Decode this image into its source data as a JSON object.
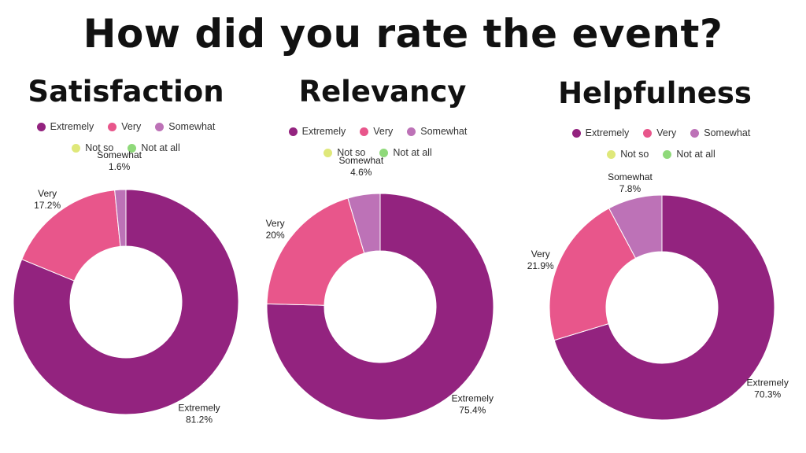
{
  "title": "How did you rate the event?",
  "colors": {
    "Extremely": "#93237f",
    "Very": "#e8568b",
    "Somewhat": "#bd72b7",
    "Not so": "#dfe87a",
    "Not at all": "#8fd97a"
  },
  "legend": {
    "row1": [
      "Extremely",
      "Very",
      "Somewhat"
    ],
    "row2": [
      "Not so",
      "Not at all"
    ]
  },
  "chart_data": [
    {
      "type": "pie",
      "title": "Satisfaction",
      "categories": [
        "Extremely",
        "Very",
        "Somewhat",
        "Not so",
        "Not at all"
      ],
      "values": [
        81.2,
        17.2,
        1.6,
        0,
        0
      ],
      "labels": [
        "81.2%",
        "17.2%",
        "1.6%",
        "",
        ""
      ],
      "hole": "donut"
    },
    {
      "type": "pie",
      "title": "Relevancy",
      "categories": [
        "Extremely",
        "Very",
        "Somewhat",
        "Not so",
        "Not at all"
      ],
      "values": [
        75.4,
        20,
        4.6,
        0,
        0
      ],
      "labels": [
        "75.4%",
        "20%",
        "4.6%",
        "",
        ""
      ],
      "hole": "donut"
    },
    {
      "type": "pie",
      "title": "Helpfulness",
      "categories": [
        "Extremely",
        "Very",
        "Somewhat",
        "Not so",
        "Not at all"
      ],
      "values": [
        70.3,
        21.9,
        7.8,
        0,
        0
      ],
      "labels": [
        "70.3%",
        "21.9%",
        "7.8%",
        "",
        ""
      ],
      "hole": "donut"
    }
  ]
}
